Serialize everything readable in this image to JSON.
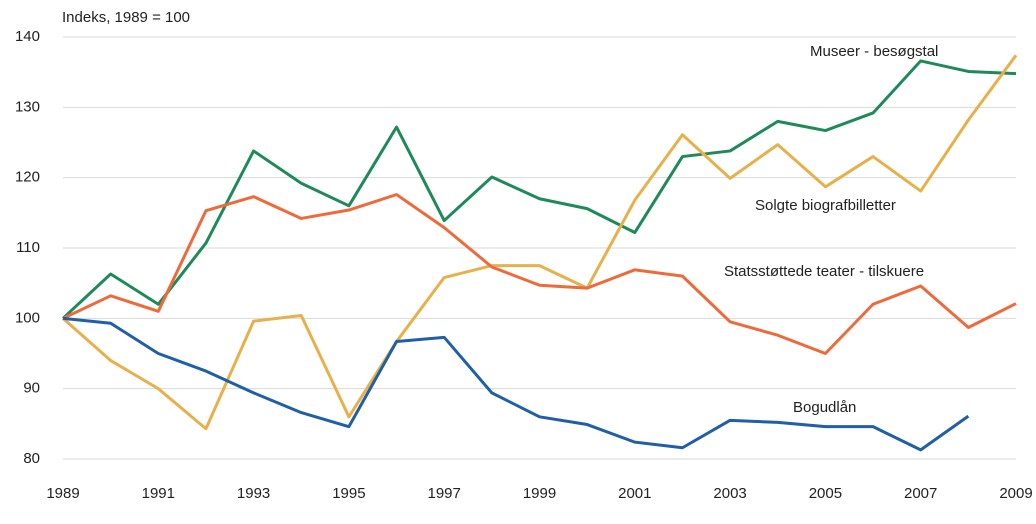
{
  "chart_data": {
    "type": "line",
    "ylabel": "Indeks, 1989 = 100",
    "x": [
      1989,
      1990,
      1991,
      1992,
      1993,
      1994,
      1995,
      1996,
      1997,
      1998,
      1999,
      2000,
      2001,
      2002,
      2003,
      2004,
      2005,
      2006,
      2007,
      2008,
      2009
    ],
    "xlim": [
      1989,
      2009
    ],
    "xticks": [
      1989,
      1991,
      1993,
      1995,
      1997,
      1999,
      2001,
      2003,
      2005,
      2007,
      2009
    ],
    "ylim": [
      80,
      140
    ],
    "yticks": [
      80,
      90,
      100,
      110,
      120,
      130,
      140
    ],
    "grid": true,
    "series": [
      {
        "name": "Museer - besøgstal",
        "color": "#1e8a5a",
        "values": [
          100,
          106.3,
          102,
          110.7,
          123.8,
          119.2,
          116,
          127.2,
          113.9,
          120.1,
          117,
          115.6,
          112.2,
          123,
          123.8,
          128,
          126.7,
          129.2,
          136.6,
          135.1,
          134.8
        ]
      },
      {
        "name": "Solgte biografbilletter",
        "color": "#e8b04a",
        "values": [
          100,
          94,
          90,
          84.3,
          99.6,
          100.4,
          86,
          96.7,
          105.8,
          107.5,
          107.5,
          104.3,
          116.8,
          126.1,
          119.9,
          124.7,
          118.7,
          123,
          118.1,
          128.2,
          137.4
        ]
      },
      {
        "name": "Statsstøttede teater - tilskuere",
        "color": "#ee6a3a",
        "values": [
          100,
          103.2,
          101,
          115.3,
          117.3,
          114.2,
          115.4,
          117.6,
          112.9,
          107.3,
          104.7,
          104.3,
          106.9,
          106,
          99.5,
          97.6,
          95,
          102,
          104.6,
          98.7,
          102.1
        ]
      },
      {
        "name": "Bogudlån",
        "color": "#1f5fa8",
        "values": [
          100,
          99.3,
          95,
          92.5,
          89.4,
          86.6,
          84.6,
          96.7,
          97.3,
          89.4,
          86,
          84.9,
          82.4,
          81.6,
          85.5,
          85.2,
          84.6,
          84.6,
          81.3,
          86.1,
          null
        ]
      }
    ]
  }
}
